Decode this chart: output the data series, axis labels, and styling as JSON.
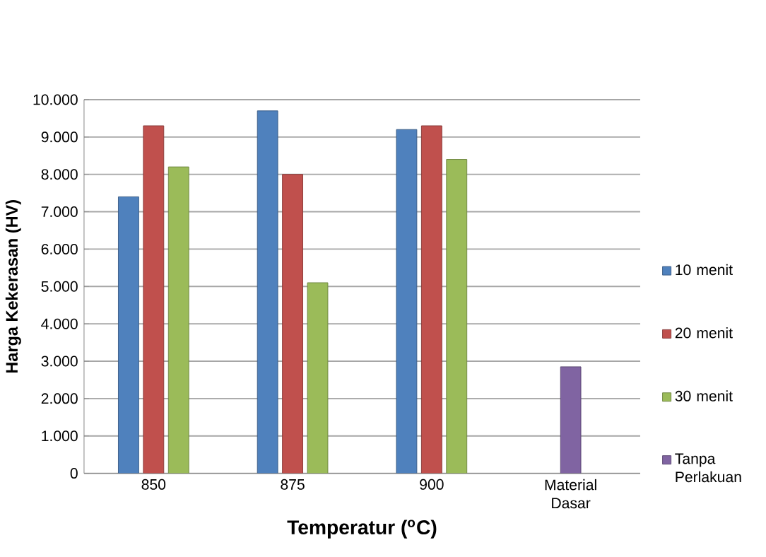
{
  "chart_data": {
    "type": "bar",
    "xlabel": "Temperatur ($^{o}$C)",
    "ylabel": "Harga Kekerasan (HV)",
    "categories": [
      "850",
      "875",
      "900",
      "Material Dasar"
    ],
    "series": [
      {
        "name": "10 menit",
        "color": "#4f81bd",
        "values": [
          7400,
          9700,
          9200,
          null
        ]
      },
      {
        "name": "20 menit",
        "color": "#c0504d",
        "values": [
          9300,
          8000,
          9300,
          null
        ]
      },
      {
        "name": "30 menit",
        "color": "#9bbb59",
        "values": [
          8200,
          5100,
          8400,
          null
        ]
      },
      {
        "name": "Tanpa Perlakuan",
        "color": "#8064a2",
        "values": [
          null,
          null,
          null,
          2850
        ]
      }
    ],
    "ylim": [
      0,
      10000
    ],
    "yticks": [
      0,
      {
        "value": 1000,
        "label": "1.000"
      },
      {
        "value": 2000,
        "label": "2.000"
      },
      {
        "value": 3000,
        "label": "3.000"
      },
      {
        "value": 4000,
        "label": "4.000"
      },
      {
        "value": 5000,
        "label": "5.000"
      },
      {
        "value": 6000,
        "label": "6.000"
      },
      {
        "value": 7000,
        "label": "7.000"
      },
      {
        "value": 8000,
        "label": "8.000"
      },
      {
        "value": 9000,
        "label": "9.000"
      },
      {
        "value": 10000,
        "label": "10.000"
      }
    ],
    "grid": "y",
    "legend": "right"
  }
}
